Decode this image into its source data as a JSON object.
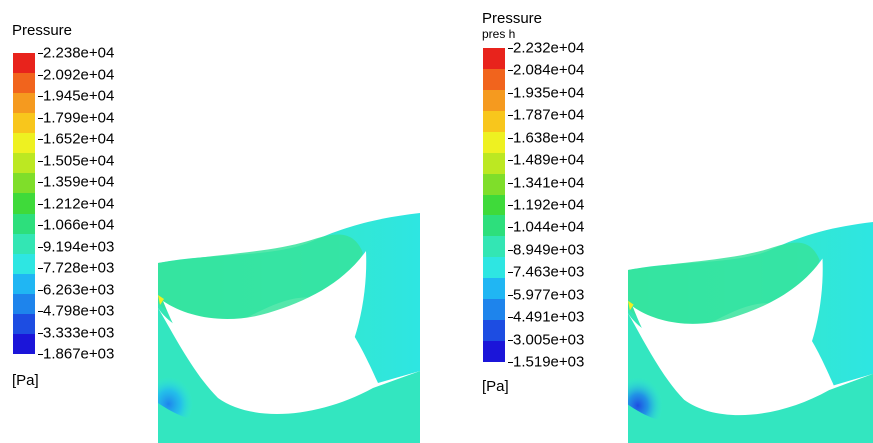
{
  "left": {
    "title": "Pressure",
    "unit": "[Pa]",
    "ticks": [
      "2.238e+04",
      "2.092e+04",
      "1.945e+04",
      "1.799e+04",
      "1.652e+04",
      "1.505e+04",
      "1.359e+04",
      "1.212e+04",
      "1.066e+04",
      "9.194e+03",
      "7.728e+03",
      "6.263e+03",
      "4.798e+03",
      "3.333e+03",
      "1.867e+03"
    ]
  },
  "right": {
    "title": "Pressure",
    "subtitle": "pres h",
    "unit": "[Pa]",
    "ticks": [
      "2.232e+04",
      "2.084e+04",
      "1.935e+04",
      "1.787e+04",
      "1.638e+04",
      "1.489e+04",
      "1.341e+04",
      "1.192e+04",
      "1.044e+04",
      "8.949e+03",
      "7.463e+03",
      "5.977e+03",
      "4.491e+03",
      "3.005e+03",
      "1.519e+03"
    ]
  },
  "colormap": [
    "#e8231c",
    "#f1641d",
    "#f59a1f",
    "#f8c61c",
    "#eef121",
    "#bce822",
    "#7fde2a",
    "#3fda3a",
    "#2ddf7c",
    "#33e6b4",
    "#2ee6e2",
    "#20b6f3",
    "#1e84ec",
    "#1d4de2",
    "#1b15d9"
  ]
}
